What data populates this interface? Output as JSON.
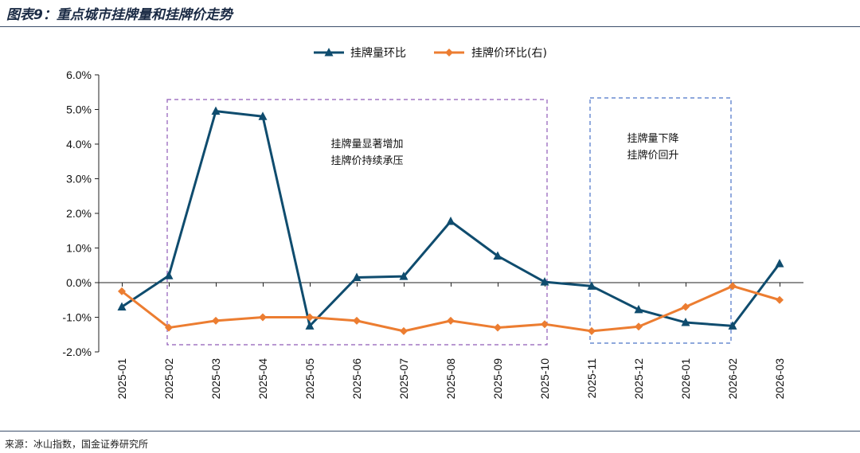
{
  "figure": {
    "title": "图表9：重点城市挂牌量和挂牌价走势",
    "source": "来源：冰山指数，国金证券研究所"
  },
  "chart_data": {
    "type": "line",
    "title": "",
    "xlabel": "",
    "ylabel": "",
    "categories": [
      "2025-01",
      "2025-02",
      "2025-03",
      "2025-04",
      "2025-05",
      "2025-06",
      "2025-07",
      "2025-08",
      "2025-09",
      "2025-10",
      "2025-11",
      "2025-12",
      "2026-01",
      "2026-02",
      "2026-03"
    ],
    "ylim": [
      -2.0,
      6.0
    ],
    "yticks": [
      "-2.0%",
      "-1.0%",
      "0.0%",
      "1.0%",
      "2.0%",
      "3.0%",
      "4.0%",
      "5.0%",
      "6.0%"
    ],
    "legend_position": "top-center",
    "series": [
      {
        "name": "挂牌量环比",
        "color": "#0f4c6e",
        "marker": "triangle",
        "values": [
          -0.7,
          0.2,
          4.95,
          4.8,
          -1.25,
          0.15,
          0.18,
          1.77,
          0.77,
          0.02,
          -0.1,
          -0.78,
          -1.15,
          -1.25,
          0.55
        ]
      },
      {
        "name": "挂牌价环比(右)",
        "color": "#ec7d31",
        "marker": "diamond",
        "values": [
          -0.25,
          -1.3,
          -1.1,
          -1.0,
          -1.0,
          -1.1,
          -1.4,
          -1.1,
          -1.3,
          -1.2,
          -1.4,
          -1.27,
          -0.7,
          -0.1,
          -0.5
        ]
      }
    ],
    "annotations": [
      {
        "lines": [
          "挂牌量显著增加",
          "挂牌价持续承压"
        ],
        "color": "#8f5ab8",
        "from": "2025-02",
        "to": "2025-10"
      },
      {
        "lines": [
          "挂牌量下降",
          "挂牌价回升"
        ],
        "color": "#4a73c7",
        "from": "2025-11",
        "to": "2026-02"
      }
    ]
  }
}
